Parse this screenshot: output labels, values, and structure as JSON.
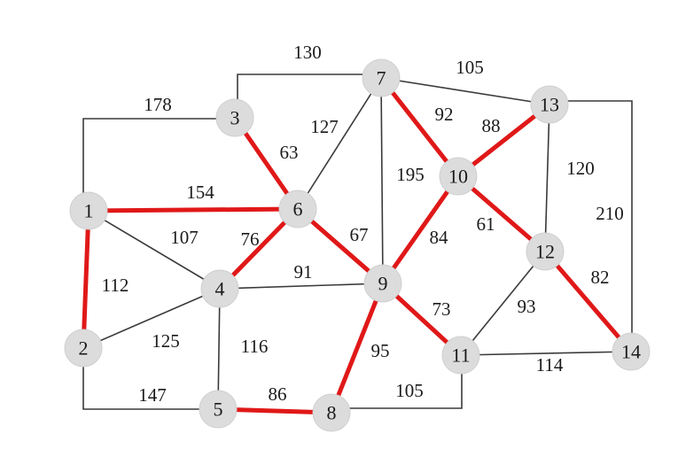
{
  "graph": {
    "highlight_color": "#e01818",
    "edge_color": "#3a3a3a",
    "node_color": "#dcdcdc",
    "nodes": [
      {
        "id": "1",
        "label": "1"
      },
      {
        "id": "2",
        "label": "2"
      },
      {
        "id": "3",
        "label": "3"
      },
      {
        "id": "4",
        "label": "4"
      },
      {
        "id": "5",
        "label": "5"
      },
      {
        "id": "6",
        "label": "6"
      },
      {
        "id": "7",
        "label": "7"
      },
      {
        "id": "8",
        "label": "8"
      },
      {
        "id": "9",
        "label": "9"
      },
      {
        "id": "10",
        "label": "10"
      },
      {
        "id": "11",
        "label": "11"
      },
      {
        "id": "12",
        "label": "12"
      },
      {
        "id": "13",
        "label": "13"
      },
      {
        "id": "14",
        "label": "14"
      }
    ],
    "edges": [
      {
        "id": "e-1-3",
        "from": "1",
        "to": "3",
        "weight": "178",
        "highlighted": false
      },
      {
        "id": "e-3-7",
        "from": "3",
        "to": "7",
        "weight": "130",
        "highlighted": false
      },
      {
        "id": "e-7-13",
        "from": "7",
        "to": "13",
        "weight": "105",
        "highlighted": false
      },
      {
        "id": "e-13-14",
        "from": "13",
        "to": "14",
        "weight": "210",
        "highlighted": false
      },
      {
        "id": "e-2-5",
        "from": "2",
        "to": "5",
        "weight": "147",
        "highlighted": false
      },
      {
        "id": "e-8-11",
        "from": "8",
        "to": "11",
        "weight": "105",
        "highlighted": false
      },
      {
        "id": "e-1-4",
        "from": "1",
        "to": "4",
        "weight": "107",
        "highlighted": false
      },
      {
        "id": "e-2-4",
        "from": "2",
        "to": "4",
        "weight": "125",
        "highlighted": false
      },
      {
        "id": "e-4-5",
        "from": "4",
        "to": "5",
        "weight": "116",
        "highlighted": false
      },
      {
        "id": "e-4-9",
        "from": "4",
        "to": "9",
        "weight": "91",
        "highlighted": false
      },
      {
        "id": "e-6-7",
        "from": "6",
        "to": "7",
        "weight": "127",
        "highlighted": false
      },
      {
        "id": "e-7-9",
        "from": "7",
        "to": "9",
        "weight": "195",
        "highlighted": false
      },
      {
        "id": "e-13-12",
        "from": "13",
        "to": "12",
        "weight": "120",
        "highlighted": false
      },
      {
        "id": "e-11-12",
        "from": "11",
        "to": "12",
        "weight": "93",
        "highlighted": false
      },
      {
        "id": "e-11-14",
        "from": "11",
        "to": "14",
        "weight": "114",
        "highlighted": false
      },
      {
        "id": "e-1-6",
        "from": "1",
        "to": "6",
        "weight": "154",
        "highlighted": true
      },
      {
        "id": "e-1-2",
        "from": "1",
        "to": "2",
        "weight": "112",
        "highlighted": true
      },
      {
        "id": "e-3-6",
        "from": "3",
        "to": "6",
        "weight": "63",
        "highlighted": true
      },
      {
        "id": "e-6-4",
        "from": "6",
        "to": "4",
        "weight": "76",
        "highlighted": true
      },
      {
        "id": "e-6-9",
        "from": "6",
        "to": "9",
        "weight": "67",
        "highlighted": true
      },
      {
        "id": "e-5-8",
        "from": "5",
        "to": "8",
        "weight": "86",
        "highlighted": true
      },
      {
        "id": "e-9-8",
        "from": "9",
        "to": "8",
        "weight": "95",
        "highlighted": true
      },
      {
        "id": "e-9-11",
        "from": "9",
        "to": "11",
        "weight": "73",
        "highlighted": true
      },
      {
        "id": "e-7-10",
        "from": "7",
        "to": "10",
        "weight": "92",
        "highlighted": true
      },
      {
        "id": "e-10-13",
        "from": "10",
        "to": "13",
        "weight": "88",
        "highlighted": true
      },
      {
        "id": "e-10-9",
        "from": "10",
        "to": "9",
        "weight": "84",
        "highlighted": true
      },
      {
        "id": "e-10-12",
        "from": "10",
        "to": "12",
        "weight": "61",
        "highlighted": true
      },
      {
        "id": "e-12-14",
        "from": "12",
        "to": "14",
        "weight": "82",
        "highlighted": true
      }
    ]
  }
}
